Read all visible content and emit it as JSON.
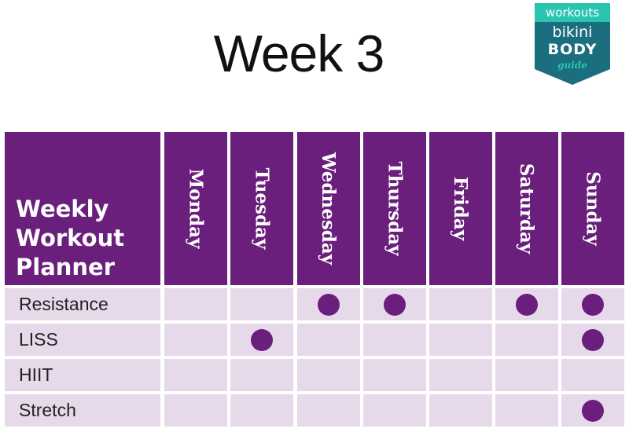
{
  "title": "Week 3",
  "badge": {
    "tag": "workouts",
    "line1": "bikini",
    "line2": "BODY",
    "line3": "guide",
    "tag_color": "#2bc4b0",
    "ribbon_color": "#1b6e7e"
  },
  "planner": {
    "heading_lines": [
      "Weekly",
      "Workout",
      "Planner"
    ],
    "days": [
      "Monday",
      "Tuesday",
      "Wednesday",
      "Thursday",
      "Friday",
      "Saturday",
      "Sunday"
    ],
    "rows": [
      {
        "label": "Resistance",
        "checks": [
          false,
          false,
          true,
          true,
          false,
          true,
          true
        ]
      },
      {
        "label": "LISS",
        "checks": [
          false,
          true,
          false,
          false,
          false,
          false,
          true
        ]
      },
      {
        "label": "HIIT",
        "checks": [
          false,
          false,
          false,
          false,
          false,
          false,
          false
        ]
      },
      {
        "label": "Stretch",
        "checks": [
          false,
          false,
          false,
          false,
          false,
          false,
          true
        ]
      }
    ],
    "colors": {
      "header": "#6a1f7c",
      "cell": "#e6d9ea",
      "dot": "#6a1f7c"
    }
  }
}
